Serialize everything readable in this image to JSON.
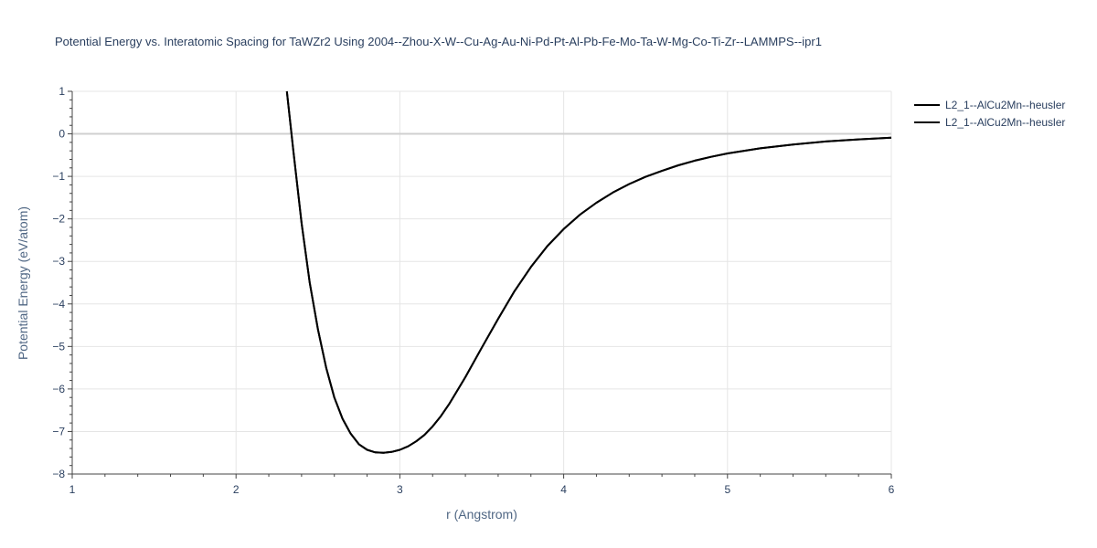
{
  "chart_data": {
    "type": "line",
    "title": "Potential Energy vs. Interatomic Spacing for TaWZr2 Using 2004--Zhou-X-W--Cu-Ag-Au-Ni-Pd-Pt-Al-Pb-Fe-Mo-Ta-W-Mg-Co-Ti-Zr--LAMMPS--ipr1",
    "xlabel": "r (Angstrom)",
    "ylabel": "Potential Energy (eV/atom)",
    "xlim": [
      1,
      6
    ],
    "ylim": [
      -8,
      1
    ],
    "xticks": [
      "1",
      "2",
      "3",
      "4",
      "5",
      "6"
    ],
    "yticks": [
      "1",
      "0",
      "−1",
      "−2",
      "−3",
      "−4",
      "−5",
      "−6",
      "−7",
      "−8"
    ],
    "grid": true,
    "legend_position": "top-right",
    "colors": {
      "line": "#000000",
      "grid": "#e5e5e5",
      "zeroline": "#d0d0d0",
      "text": "#2a3f5f"
    },
    "series": [
      {
        "name": "L2_1--AlCu2Mn--heusler",
        "color": "#000000",
        "x": [
          2.31,
          2.35,
          2.4,
          2.45,
          2.5,
          2.55,
          2.6,
          2.65,
          2.7,
          2.75,
          2.8,
          2.85,
          2.9,
          2.95,
          3.0,
          3.05,
          3.1,
          3.15,
          3.2,
          3.25,
          3.3,
          3.4,
          3.5,
          3.6,
          3.7,
          3.8,
          3.9,
          4.0,
          4.1,
          4.2,
          4.3,
          4.4,
          4.5,
          4.6,
          4.7,
          4.8,
          4.9,
          5.0,
          5.2,
          5.4,
          5.6,
          5.8,
          6.0
        ],
        "y": [
          1.0,
          -0.4,
          -2.1,
          -3.5,
          -4.6,
          -5.5,
          -6.2,
          -6.7,
          -7.05,
          -7.3,
          -7.43,
          -7.49,
          -7.5,
          -7.48,
          -7.43,
          -7.35,
          -7.23,
          -7.08,
          -6.88,
          -6.64,
          -6.36,
          -5.72,
          -5.03,
          -4.35,
          -3.7,
          -3.13,
          -2.64,
          -2.24,
          -1.9,
          -1.62,
          -1.38,
          -1.18,
          -1.01,
          -0.87,
          -0.74,
          -0.63,
          -0.54,
          -0.46,
          -0.34,
          -0.25,
          -0.18,
          -0.13,
          -0.09
        ]
      },
      {
        "name": "L2_1--AlCu2Mn--heusler",
        "color": "#000000",
        "x": [
          2.31,
          2.35,
          2.4,
          2.45,
          2.5,
          2.55,
          2.6,
          2.65,
          2.7,
          2.75,
          2.8,
          2.85,
          2.9,
          2.95,
          3.0,
          3.05,
          3.1,
          3.15,
          3.2,
          3.25,
          3.3,
          3.4,
          3.5,
          3.6,
          3.7,
          3.8,
          3.9,
          4.0,
          4.1,
          4.2,
          4.3,
          4.4,
          4.5,
          4.6,
          4.7,
          4.8,
          4.9,
          5.0,
          5.2,
          5.4,
          5.6,
          5.8,
          6.0
        ],
        "y": [
          1.0,
          -0.4,
          -2.1,
          -3.5,
          -4.6,
          -5.5,
          -6.2,
          -6.7,
          -7.05,
          -7.3,
          -7.43,
          -7.49,
          -7.5,
          -7.48,
          -7.43,
          -7.35,
          -7.23,
          -7.08,
          -6.88,
          -6.64,
          -6.36,
          -5.72,
          -5.03,
          -4.35,
          -3.7,
          -3.13,
          -2.64,
          -2.24,
          -1.9,
          -1.62,
          -1.38,
          -1.18,
          -1.01,
          -0.87,
          -0.74,
          -0.63,
          -0.54,
          -0.46,
          -0.34,
          -0.25,
          -0.18,
          -0.13,
          -0.09
        ]
      }
    ]
  }
}
